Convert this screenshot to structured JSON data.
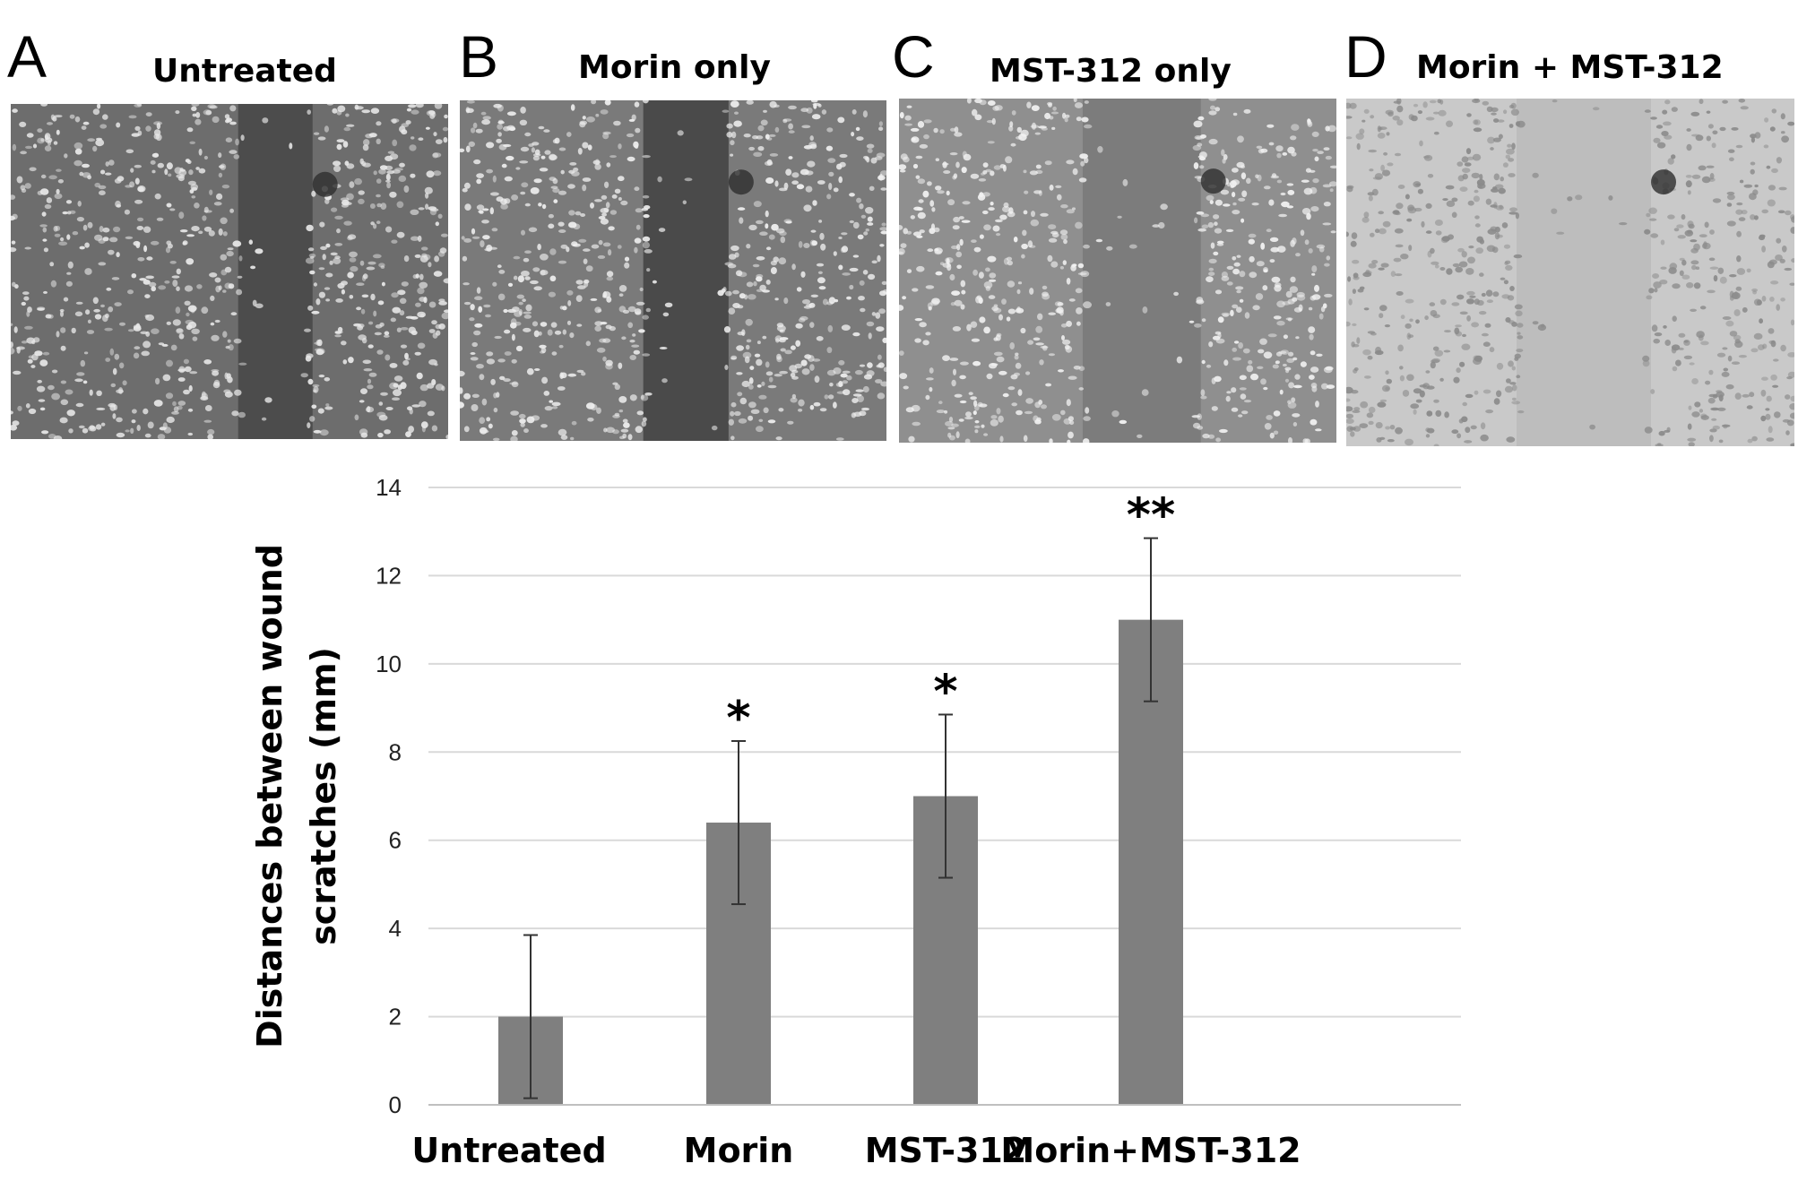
{
  "panels": [
    {
      "letter": "A",
      "title": "Untreated",
      "tone": "#6d6d6d",
      "cell": "#e8e8e8",
      "gap": "#4c4c4c"
    },
    {
      "letter": "B",
      "title": "Morin only",
      "tone": "#7a7a7a",
      "cell": "#efefef",
      "gap": "#4a4a4a"
    },
    {
      "letter": "C",
      "title": "MST-312 only",
      "tone": "#8f8f8f",
      "cell": "#f2f2f2",
      "gap": "#7c7c7c"
    },
    {
      "letter": "D",
      "title": "Morin + MST-312",
      "tone": "#c9c9c9",
      "cell": "#8a8a8a",
      "gap": "#bdbdbd"
    }
  ],
  "chart_data": {
    "type": "bar",
    "categories": [
      "Untreated",
      "Morin",
      "MST-312",
      "Morin+MST-312"
    ],
    "values": [
      2.0,
      6.4,
      7.0,
      11.0
    ],
    "errors": [
      1.85,
      1.85,
      1.85,
      1.85
    ],
    "significance": [
      "",
      "*",
      "*",
      "**"
    ],
    "ylabel_lines": [
      "Distances between wound",
      "scratches (mm)"
    ],
    "xlabel": "",
    "ylim": [
      0,
      14
    ],
    "yticks": [
      0,
      2,
      4,
      6,
      8,
      10,
      12,
      14
    ],
    "grid": true,
    "bar_color": "#7f7f7f",
    "grid_color": "#d9d9d9"
  }
}
